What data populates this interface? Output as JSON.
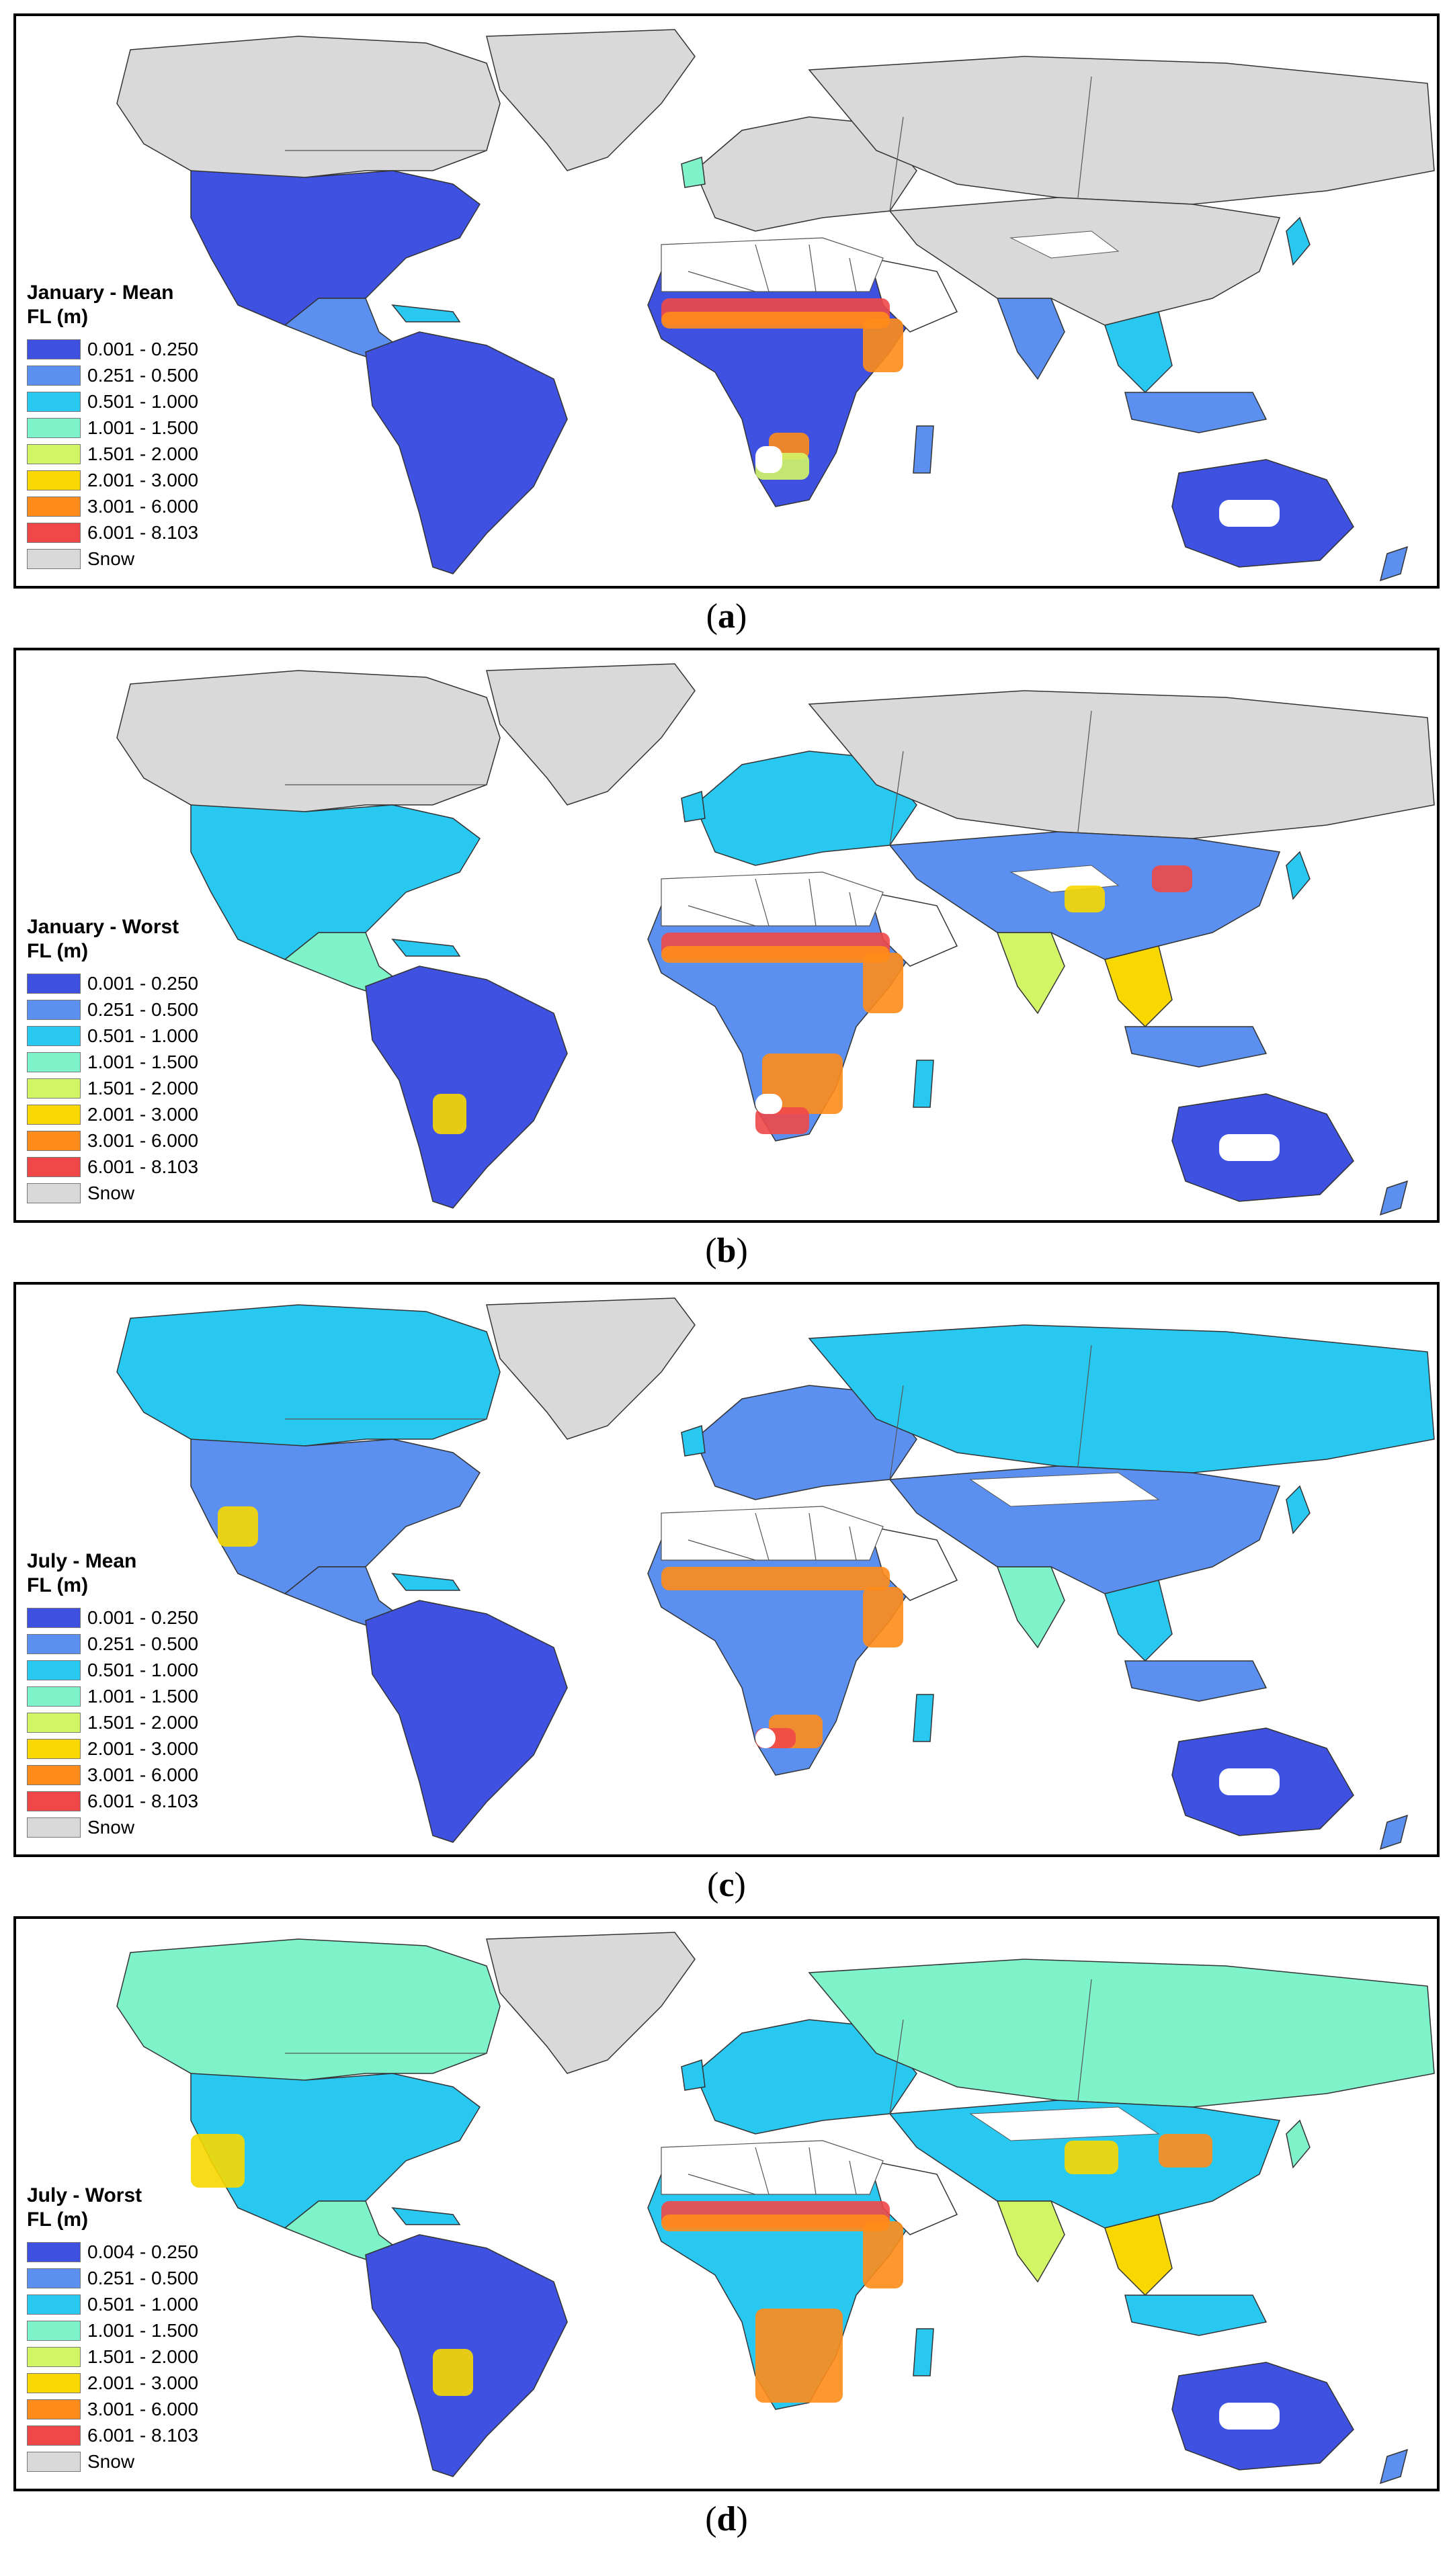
{
  "legend_classes": [
    {
      "color": "#3f51e0"
    },
    {
      "color": "#5b8ff0"
    },
    {
      "color": "#28c8f0"
    },
    {
      "color": "#7ef2c8"
    },
    {
      "color": "#d2f566"
    },
    {
      "color": "#f8d800"
    },
    {
      "color": "#ff8c1a"
    },
    {
      "color": "#f04848"
    },
    {
      "color": "#d9d9d9"
    }
  ],
  "colors": {
    "ocean": "#ffffff",
    "snow": "#d9d9d9",
    "unclassified": "#ffffff",
    "border": "#000000"
  },
  "panels": [
    {
      "title_line1": "January - Mean",
      "title_line2": "FL (m)",
      "legend": [
        "0.001 - 0.250",
        "0.251 - 0.500",
        "0.501 - 1.000",
        "1.001 - 1.500",
        "1.501 - 2.000",
        "2.001 - 3.000",
        "3.001 - 6.000",
        "6.001 - 8.103",
        "Snow"
      ],
      "caption_open": "(",
      "caption_letter": "a",
      "caption_close": ")"
    },
    {
      "title_line1": "January - Worst",
      "title_line2": "FL (m)",
      "legend": [
        "0.001 - 0.250",
        "0.251 - 0.500",
        "0.501 - 1.000",
        "1.001 - 1.500",
        "1.501 - 2.000",
        "2.001 - 3.000",
        "3.001 - 6.000",
        "6.001 - 8.103",
        "Snow"
      ],
      "caption_open": "(",
      "caption_letter": "b",
      "caption_close": ")"
    },
    {
      "title_line1": "July - Mean",
      "title_line2": "FL (m)",
      "legend": [
        "0.001 - 0.250",
        "0.251 - 0.500",
        "0.501 - 1.000",
        "1.001 - 1.500",
        "1.501 - 2.000",
        "2.001 - 3.000",
        "3.001 - 6.000",
        "6.001 - 8.103",
        "Snow"
      ],
      "caption_open": "(",
      "caption_letter": "c",
      "caption_close": ")"
    },
    {
      "title_line1": "July - Worst",
      "title_line2": "FL (m)",
      "legend": [
        "0.004 - 0.250",
        "0.251 - 0.500",
        "0.501 - 1.000",
        "1.001 - 1.500",
        "1.501 - 2.000",
        "2.001 - 3.000",
        "3.001 - 6.000",
        "6.001 - 8.103",
        "Snow"
      ],
      "caption_open": "(",
      "caption_letter": "d",
      "caption_close": ")"
    }
  ]
}
